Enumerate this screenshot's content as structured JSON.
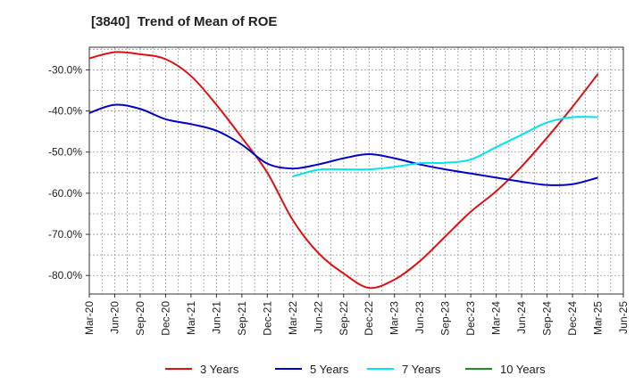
{
  "chart_data": {
    "type": "line",
    "title": "[3840]  Trend of Mean of ROE",
    "xlabel": "",
    "ylabel": "",
    "x": [
      "Mar-20",
      "Jun-20",
      "Sep-20",
      "Dec-20",
      "Mar-21",
      "Jun-21",
      "Sep-21",
      "Dec-21",
      "Mar-22",
      "Jun-22",
      "Sep-22",
      "Dec-22",
      "Mar-23",
      "Jun-23",
      "Sep-23",
      "Dec-23",
      "Mar-24",
      "Jun-24",
      "Sep-24",
      "Dec-24",
      "Mar-25",
      "Jun-25"
    ],
    "ylim": [
      -84.5,
      -24.5
    ],
    "yticks": [
      -30,
      -40,
      -50,
      -60,
      -70,
      -80
    ],
    "ytick_labels": [
      "-30.0%",
      "-40.0%",
      "-50.0%",
      "-60.0%",
      "-70.0%",
      "-80.0%"
    ],
    "grid": true,
    "legend_position": "bottom",
    "series": [
      {
        "name": "3 Years",
        "color": "#dd1111",
        "values": [
          -27.2,
          -25.7,
          -26.2,
          -27.4,
          -31.5,
          -38.5,
          -46.5,
          -55.0,
          -66.5,
          -74.5,
          -79.5,
          -83.0,
          -81.0,
          -76.5,
          -70.5,
          -64.5,
          -59.5,
          -53.5,
          -46.5,
          -39.0,
          -31.0,
          null
        ]
      },
      {
        "name": "5 Years",
        "color": "#0000cc",
        "values": [
          -40.5,
          -38.5,
          -39.5,
          -42.0,
          -43.2,
          -44.8,
          -48.2,
          -52.8,
          -54.0,
          -53.0,
          -51.5,
          -50.5,
          -51.5,
          -53.0,
          -54.2,
          -55.2,
          -56.2,
          -57.2,
          -58.0,
          -57.8,
          -56.2,
          null
        ]
      },
      {
        "name": "7 Years",
        "color": "#00e5ee",
        "values": [
          null,
          null,
          null,
          null,
          null,
          null,
          null,
          null,
          -55.9,
          -54.3,
          -54.2,
          -54.2,
          -53.6,
          -52.7,
          -52.6,
          -51.8,
          -48.8,
          -45.8,
          -42.8,
          -41.5,
          -41.5,
          null
        ]
      },
      {
        "name": "10 Years",
        "color": "#228b22",
        "values": [
          null,
          null,
          null,
          null,
          null,
          null,
          null,
          null,
          null,
          null,
          null,
          null,
          null,
          null,
          null,
          null,
          null,
          null,
          null,
          null,
          null,
          null
        ]
      }
    ]
  }
}
